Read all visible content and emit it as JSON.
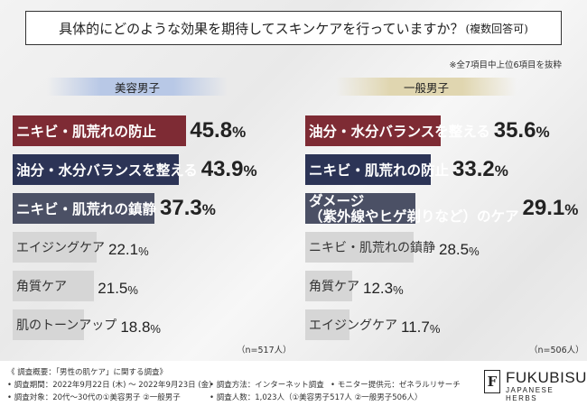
{
  "title": {
    "main": "具体的にどのような効果を期待してスキンケアを行っていますか？",
    "sub": "(複数回答可)"
  },
  "note": "※全7項目中上位6項目を抜粋",
  "colors": {
    "maroon": "#7e2b34",
    "navy": "#2c3456",
    "slate": "#4b5065",
    "gray": "#d6d6d6"
  },
  "chart_data": [
    {
      "type": "bar",
      "orientation": "horizontal",
      "title": "美容男子",
      "sample": "（n=517人）",
      "categories": [
        "ニキビ・肌荒れの防止",
        "油分・水分バランスを整える",
        "ニキビ・肌荒れの鎮静",
        "エイジングケア",
        "角質ケア",
        "肌のトーンアップ"
      ],
      "values": [
        45.8,
        43.9,
        37.3,
        22.1,
        21.5,
        18.8
      ],
      "value_numbers": [
        "45.8",
        "43.9",
        "37.3",
        "22.1",
        "21.5",
        "18.8"
      ],
      "unit": "%",
      "bar_colors": [
        "maroon",
        "navy",
        "slate",
        "gray",
        "gray",
        "gray"
      ],
      "xlim": [
        0,
        60
      ]
    },
    {
      "type": "bar",
      "orientation": "horizontal",
      "title": "一般男子",
      "sample": "（n=506人）",
      "categories": [
        "油分・水分バランスを整える",
        "ニキビ・肌荒れの防止",
        "ダメージ（紫外線やヒゲ剃りなど）のケア",
        "ニキビ・肌荒れの鎮静",
        "角質ケア",
        "エイジングケア"
      ],
      "label_lines": [
        [
          "油分・水分バランスを整える"
        ],
        [
          "ニキビ・肌荒れの防止"
        ],
        [
          "ダメージ",
          "（紫外線やヒゲ剃りなど）のケア"
        ],
        [
          "ニキビ・肌荒れの鎮静"
        ],
        [
          "角質ケア"
        ],
        [
          "エイジングケア"
        ]
      ],
      "values": [
        35.6,
        33.2,
        29.1,
        28.5,
        12.3,
        11.7
      ],
      "value_numbers": [
        "35.6",
        "33.2",
        "29.1",
        "28.5",
        "12.3",
        "11.7"
      ],
      "unit": "%",
      "bar_colors": [
        "maroon",
        "navy",
        "slate",
        "gray",
        "gray",
        "gray"
      ],
      "xlim": [
        0,
        60
      ]
    }
  ],
  "footer": {
    "line1": "《 調査概要：「男性の肌ケア」に関する調査》",
    "line2a": "• 調査期間：2022年9月22日 (木) ～ 2022年9月23日 (金)",
    "line2b": "• 調査方法：インターネット調査",
    "line2c": "• モニター提供元：ゼネラルリサーチ",
    "line3a": "• 調査対象：20代～30代の①美容男子 ②一般男子",
    "line3b": "• 調査人数：1,023人（①美容男子517人 ②一般男子506人）"
  },
  "brand": {
    "mark": "F",
    "name": "FUKUBISUI",
    "sub": "JAPANESE HERBS"
  }
}
